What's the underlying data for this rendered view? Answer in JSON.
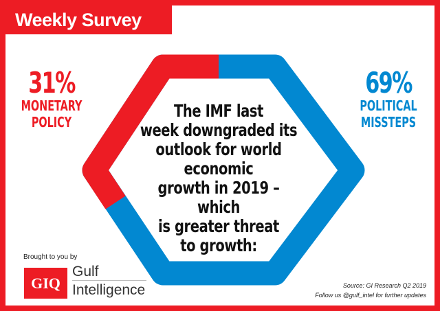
{
  "title": "Weekly Survey",
  "colors": {
    "red": "#ed1c24",
    "blue": "#0288d1"
  },
  "left": {
    "percent": "31%",
    "label1": "MONETARY",
    "label2": "POLICY",
    "value": 31
  },
  "right": {
    "percent": "69%",
    "label1": "POLITICAL",
    "label2": "MISSTEPS",
    "value": 69
  },
  "question": [
    "The IMF last",
    "week downgraded its",
    "outlook for world economic",
    "growth in 2019 – which",
    "is greater threat",
    "to growth:"
  ],
  "footer": {
    "brought": "Brought to you by",
    "logo_text": "GIQ",
    "brand1": "Gulf",
    "brand2": "Intelligence",
    "source": "Source: GI Research Q2 2019",
    "follow": "Follow us @gulf_intel for further updates"
  }
}
